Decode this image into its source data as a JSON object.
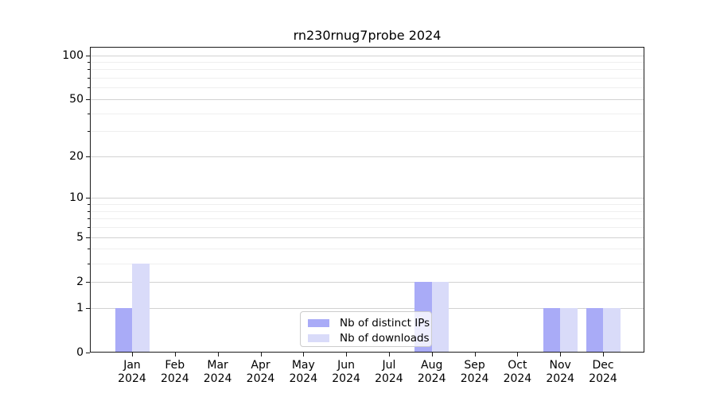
{
  "chart_data": {
    "type": "bar",
    "title": "rn230rnug7probe 2024",
    "categories": [
      "Jan",
      "Feb",
      "Mar",
      "Apr",
      "May",
      "Jun",
      "Jul",
      "Aug",
      "Sep",
      "Oct",
      "Nov",
      "Dec"
    ],
    "category_sub_label": "2024",
    "series": [
      {
        "name": "Nb of distinct IPs",
        "color": "#a9abf7",
        "values": [
          1,
          0,
          0,
          0,
          0,
          0,
          0,
          2,
          0,
          0,
          1,
          1
        ]
      },
      {
        "name": "Nb of downloads",
        "color": "#d9dbf9",
        "values": [
          3,
          0,
          0,
          0,
          0,
          0,
          0,
          2,
          0,
          0,
          1,
          1
        ]
      }
    ],
    "xlabel": "",
    "ylabel": "",
    "yscale": "log1p",
    "ylim": [
      0,
      114
    ],
    "yticks": [
      0,
      1,
      2,
      5,
      10,
      20,
      50,
      100
    ],
    "minor_yticks": [
      3,
      4,
      6,
      7,
      8,
      9,
      30,
      40,
      60,
      70,
      80,
      90
    ],
    "grid": true,
    "legend_position": "lower center"
  },
  "colors": {
    "background": "#ffffff",
    "spine": "#1a1a1a",
    "grid_major": "#d2d2d2",
    "grid_minor": "#efefef",
    "legend_border": "#cccccc"
  }
}
